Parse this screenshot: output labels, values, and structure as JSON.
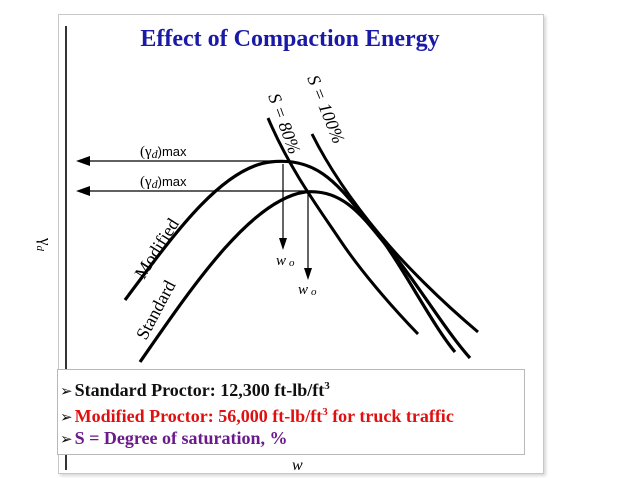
{
  "title": "Effect of Compaction Energy",
  "labels": {
    "yaxis": "γ",
    "yaxis_sub": "d",
    "xaxis": "w",
    "s80": "S = 80%",
    "s100": "S = 100%",
    "gamma_max_1": "(γ",
    "gamma_max_1_sub": "d",
    "gamma_max_1_suffix": ")max",
    "gamma_max_2": "(γ",
    "gamma_max_2_sub": "d",
    "gamma_max_2_suffix": ")max",
    "modified": "Modified",
    "standard": "Standard",
    "w0_modified": "w",
    "w0_modified_sub": "o",
    "w0_standard": "w",
    "w0_standard_sub": "o"
  },
  "legend": {
    "line1_text": "Standard Proctor: 12,300 ft-lb/ft",
    "line1_sup": "3",
    "line2_text": "Modified Proctor: 56,000 ft-lb/ft",
    "line2_sup": "3",
    "line2_suffix": " for truck traffic",
    "line3_text": "S = Degree of saturation, %",
    "bullet": "➢"
  },
  "colors": {
    "title": "#1a1aa6",
    "line1": "#101010",
    "line2": "#e01010",
    "line3": "#6a1a8a",
    "curves": "#000000"
  }
}
